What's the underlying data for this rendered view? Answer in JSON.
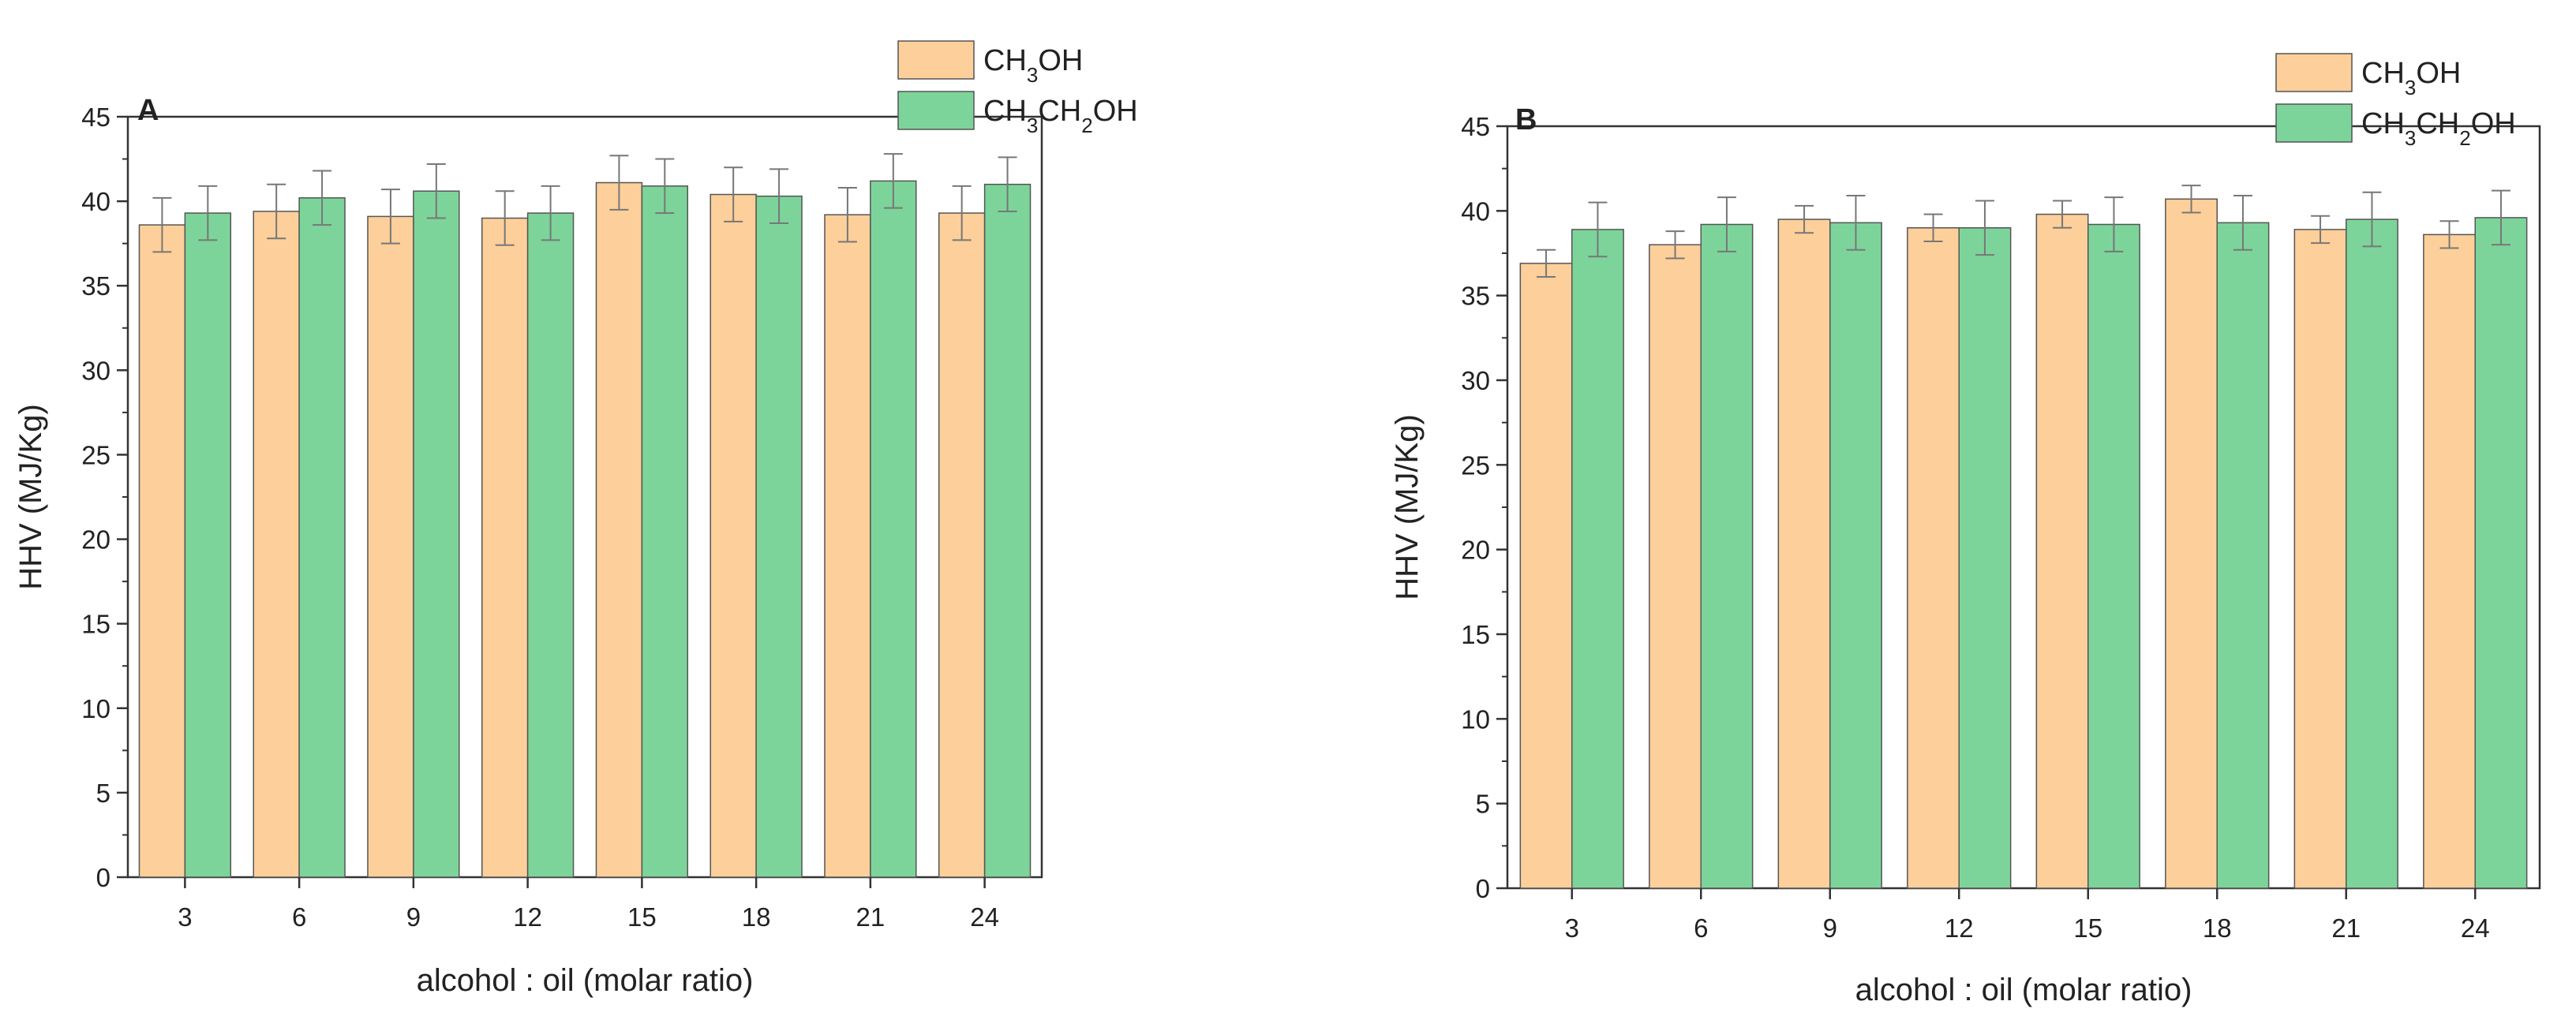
{
  "figure": {
    "domain": "Chart"
  },
  "chart_data": [
    {
      "type": "bar",
      "panel_label": "A",
      "title": "",
      "xlabel": "alcohol : oil (molar ratio)",
      "ylabel": "HHV (MJ/Kg)",
      "ylim": [
        0,
        45
      ],
      "yticks": [
        0,
        5,
        10,
        15,
        20,
        25,
        30,
        35,
        40,
        45
      ],
      "categories": [
        "3",
        "6",
        "9",
        "12",
        "15",
        "18",
        "21",
        "24"
      ],
      "legend_position": "top-right",
      "series": [
        {
          "name": "CH3OH",
          "legend": {
            "base": "CH",
            "sub1": "3",
            "rest": "OH"
          },
          "color": "#FDCF9A",
          "values": [
            38.6,
            39.4,
            39.1,
            39.0,
            41.1,
            40.4,
            39.2,
            39.3
          ],
          "errors": [
            1.6,
            1.6,
            1.6,
            1.6,
            1.6,
            1.6,
            1.6,
            1.6
          ]
        },
        {
          "name": "CH3CH2OH",
          "legend": {
            "base": "CH",
            "sub1": "3",
            "mid": "CH",
            "sub2": "2",
            "rest": "OH"
          },
          "color": "#7DD49A",
          "values": [
            39.3,
            40.2,
            40.6,
            39.3,
            40.9,
            40.3,
            41.2,
            41.0
          ],
          "errors": [
            1.6,
            1.6,
            1.6,
            1.6,
            1.6,
            1.6,
            1.6,
            1.6
          ]
        }
      ]
    },
    {
      "type": "bar",
      "panel_label": "B",
      "title": "",
      "xlabel": "alcohol : oil (molar ratio)",
      "ylabel": "HHV (MJ/Kg)",
      "ylim": [
        0,
        45
      ],
      "yticks": [
        0,
        5,
        10,
        15,
        20,
        25,
        30,
        35,
        40,
        45
      ],
      "categories": [
        "3",
        "6",
        "9",
        "12",
        "15",
        "18",
        "21",
        "24"
      ],
      "legend_position": "top-right",
      "series": [
        {
          "name": "CH3OH",
          "legend": {
            "base": "CH",
            "sub1": "3",
            "rest": "OH"
          },
          "color": "#FDCF9A",
          "values": [
            36.9,
            38.0,
            39.5,
            39.0,
            39.8,
            40.7,
            38.9,
            38.6
          ],
          "errors": [
            0.8,
            0.8,
            0.8,
            0.8,
            0.8,
            0.8,
            0.8,
            0.8
          ]
        },
        {
          "name": "CH3CH2OH",
          "legend": {
            "base": "CH",
            "sub1": "3",
            "mid": "CH",
            "sub2": "2",
            "rest": "OH"
          },
          "color": "#7DD49A",
          "values": [
            38.9,
            39.2,
            39.3,
            39.0,
            39.2,
            39.3,
            39.5,
            39.6
          ],
          "errors": [
            1.6,
            1.6,
            1.6,
            1.6,
            1.6,
            1.6,
            1.6,
            1.6
          ]
        }
      ]
    }
  ]
}
